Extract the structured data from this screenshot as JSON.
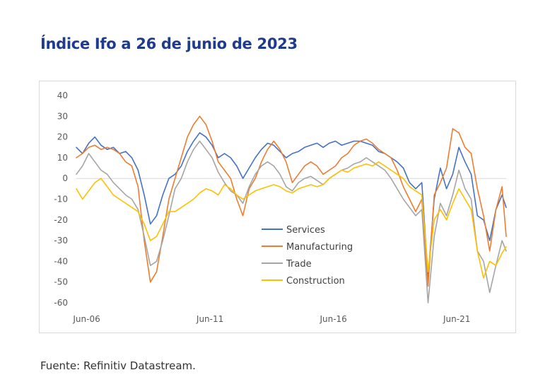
{
  "page": {
    "title": "Índice Ifo a 26 de junio de 2023",
    "source": "Fuente: Refinitiv Datastream."
  },
  "chart_data": {
    "type": "line",
    "title": "Índice Ifo a 26 de junio de 2023",
    "xlabel": "",
    "ylabel": "",
    "ylim": [
      -60,
      40
    ],
    "yticks": [
      40,
      30,
      20,
      10,
      0,
      -10,
      -20,
      -30,
      -40,
      -50,
      -60
    ],
    "xlim": [
      "Jun-06",
      "Jun-23"
    ],
    "xticks": [
      "Jun-06",
      "Jun-11",
      "Jun-16",
      "Jun-21"
    ],
    "zero_line": true,
    "grid": false,
    "legend": "center",
    "series": [
      {
        "name": "Services",
        "color": "#4472c4",
        "points": [
          [
            "2006-01",
            15
          ],
          [
            "2006-04",
            12
          ],
          [
            "2006-07",
            17
          ],
          [
            "2006-10",
            20
          ],
          [
            "2007-01",
            16
          ],
          [
            "2007-04",
            14
          ],
          [
            "2007-07",
            15
          ],
          [
            "2007-10",
            12
          ],
          [
            "2008-01",
            13
          ],
          [
            "2008-04",
            10
          ],
          [
            "2008-07",
            4
          ],
          [
            "2008-10",
            -8
          ],
          [
            "2009-01",
            -22
          ],
          [
            "2009-04",
            -18
          ],
          [
            "2009-07",
            -8
          ],
          [
            "2009-10",
            0
          ],
          [
            "2010-01",
            2
          ],
          [
            "2010-04",
            6
          ],
          [
            "2010-07",
            13
          ],
          [
            "2010-10",
            18
          ],
          [
            "2011-01",
            22
          ],
          [
            "2011-04",
            20
          ],
          [
            "2011-07",
            16
          ],
          [
            "2011-10",
            10
          ],
          [
            "2012-01",
            12
          ],
          [
            "2012-04",
            10
          ],
          [
            "2012-07",
            6
          ],
          [
            "2012-10",
            0
          ],
          [
            "2013-01",
            5
          ],
          [
            "2013-04",
            10
          ],
          [
            "2013-07",
            14
          ],
          [
            "2013-10",
            17
          ],
          [
            "2014-01",
            16
          ],
          [
            "2014-04",
            13
          ],
          [
            "2014-07",
            10
          ],
          [
            "2014-10",
            12
          ],
          [
            "2015-01",
            13
          ],
          [
            "2015-04",
            15
          ],
          [
            "2015-07",
            16
          ],
          [
            "2015-10",
            17
          ],
          [
            "2016-01",
            15
          ],
          [
            "2016-04",
            17
          ],
          [
            "2016-07",
            18
          ],
          [
            "2016-10",
            16
          ],
          [
            "2017-01",
            17
          ],
          [
            "2017-04",
            18
          ],
          [
            "2017-07",
            18
          ],
          [
            "2017-10",
            17
          ],
          [
            "2018-01",
            16
          ],
          [
            "2018-04",
            13
          ],
          [
            "2018-07",
            12
          ],
          [
            "2018-10",
            10
          ],
          [
            "2019-01",
            8
          ],
          [
            "2019-04",
            5
          ],
          [
            "2019-07",
            -2
          ],
          [
            "2019-10",
            -5
          ],
          [
            "2020-01",
            -2
          ],
          [
            "2020-04",
            -48
          ],
          [
            "2020-07",
            -10
          ],
          [
            "2020-10",
            5
          ],
          [
            "2021-01",
            -5
          ],
          [
            "2021-04",
            2
          ],
          [
            "2021-07",
            15
          ],
          [
            "2021-10",
            8
          ],
          [
            "2022-01",
            2
          ],
          [
            "2022-04",
            -18
          ],
          [
            "2022-07",
            -20
          ],
          [
            "2022-10",
            -30
          ],
          [
            "2023-01",
            -15
          ],
          [
            "2023-04",
            -8
          ],
          [
            "2023-06",
            -14
          ]
        ]
      },
      {
        "name": "Manufacturing",
        "color": "#ed7d31",
        "points": [
          [
            "2006-01",
            10
          ],
          [
            "2006-04",
            12
          ],
          [
            "2006-07",
            15
          ],
          [
            "2006-10",
            16
          ],
          [
            "2007-01",
            14
          ],
          [
            "2007-04",
            15
          ],
          [
            "2007-07",
            14
          ],
          [
            "2007-10",
            12
          ],
          [
            "2008-01",
            8
          ],
          [
            "2008-04",
            6
          ],
          [
            "2008-07",
            -4
          ],
          [
            "2008-10",
            -30
          ],
          [
            "2009-01",
            -50
          ],
          [
            "2009-04",
            -45
          ],
          [
            "2009-07",
            -28
          ],
          [
            "2009-10",
            -10
          ],
          [
            "2010-01",
            0
          ],
          [
            "2010-04",
            10
          ],
          [
            "2010-07",
            20
          ],
          [
            "2010-10",
            26
          ],
          [
            "2011-01",
            30
          ],
          [
            "2011-04",
            26
          ],
          [
            "2011-07",
            18
          ],
          [
            "2011-10",
            8
          ],
          [
            "2012-01",
            4
          ],
          [
            "2012-04",
            0
          ],
          [
            "2012-07",
            -10
          ],
          [
            "2012-10",
            -18
          ],
          [
            "2013-01",
            -5
          ],
          [
            "2013-04",
            0
          ],
          [
            "2013-07",
            8
          ],
          [
            "2013-10",
            14
          ],
          [
            "2014-01",
            18
          ],
          [
            "2014-04",
            14
          ],
          [
            "2014-07",
            8
          ],
          [
            "2014-10",
            -2
          ],
          [
            "2015-01",
            2
          ],
          [
            "2015-04",
            6
          ],
          [
            "2015-07",
            8
          ],
          [
            "2015-10",
            6
          ],
          [
            "2016-01",
            2
          ],
          [
            "2016-04",
            4
          ],
          [
            "2016-07",
            6
          ],
          [
            "2016-10",
            10
          ],
          [
            "2017-01",
            12
          ],
          [
            "2017-04",
            16
          ],
          [
            "2017-07",
            18
          ],
          [
            "2017-10",
            19
          ],
          [
            "2018-01",
            17
          ],
          [
            "2018-04",
            14
          ],
          [
            "2018-07",
            12
          ],
          [
            "2018-10",
            10
          ],
          [
            "2019-01",
            4
          ],
          [
            "2019-04",
            -4
          ],
          [
            "2019-07",
            -10
          ],
          [
            "2019-10",
            -16
          ],
          [
            "2020-01",
            -10
          ],
          [
            "2020-04",
            -52
          ],
          [
            "2020-07",
            -8
          ],
          [
            "2020-10",
            -2
          ],
          [
            "2021-01",
            5
          ],
          [
            "2021-04",
            24
          ],
          [
            "2021-07",
            22
          ],
          [
            "2021-10",
            15
          ],
          [
            "2022-01",
            12
          ],
          [
            "2022-04",
            -5
          ],
          [
            "2022-07",
            -18
          ],
          [
            "2022-10",
            -35
          ],
          [
            "2023-01",
            -15
          ],
          [
            "2023-04",
            -4
          ],
          [
            "2023-06",
            -28
          ]
        ]
      },
      {
        "name": "Trade",
        "color": "#a5a5a5",
        "points": [
          [
            "2006-01",
            2
          ],
          [
            "2006-04",
            6
          ],
          [
            "2006-07",
            12
          ],
          [
            "2006-10",
            8
          ],
          [
            "2007-01",
            4
          ],
          [
            "2007-04",
            2
          ],
          [
            "2007-07",
            -2
          ],
          [
            "2007-10",
            -5
          ],
          [
            "2008-01",
            -8
          ],
          [
            "2008-04",
            -10
          ],
          [
            "2008-07",
            -15
          ],
          [
            "2008-10",
            -28
          ],
          [
            "2009-01",
            -42
          ],
          [
            "2009-04",
            -40
          ],
          [
            "2009-07",
            -30
          ],
          [
            "2009-10",
            -18
          ],
          [
            "2010-01",
            -5
          ],
          [
            "2010-04",
            0
          ],
          [
            "2010-07",
            8
          ],
          [
            "2010-10",
            14
          ],
          [
            "2011-01",
            18
          ],
          [
            "2011-04",
            14
          ],
          [
            "2011-07",
            10
          ],
          [
            "2011-10",
            3
          ],
          [
            "2012-01",
            -2
          ],
          [
            "2012-04",
            -6
          ],
          [
            "2012-07",
            -8
          ],
          [
            "2012-10",
            -12
          ],
          [
            "2013-01",
            -4
          ],
          [
            "2013-04",
            2
          ],
          [
            "2013-07",
            6
          ],
          [
            "2013-10",
            8
          ],
          [
            "2014-01",
            6
          ],
          [
            "2014-04",
            2
          ],
          [
            "2014-07",
            -4
          ],
          [
            "2014-10",
            -6
          ],
          [
            "2015-01",
            -2
          ],
          [
            "2015-04",
            0
          ],
          [
            "2015-07",
            1
          ],
          [
            "2015-10",
            -1
          ],
          [
            "2016-01",
            -3
          ],
          [
            "2016-04",
            0
          ],
          [
            "2016-07",
            2
          ],
          [
            "2016-10",
            4
          ],
          [
            "2017-01",
            5
          ],
          [
            "2017-04",
            7
          ],
          [
            "2017-07",
            8
          ],
          [
            "2017-10",
            10
          ],
          [
            "2018-01",
            8
          ],
          [
            "2018-04",
            6
          ],
          [
            "2018-07",
            4
          ],
          [
            "2018-10",
            0
          ],
          [
            "2019-01",
            -5
          ],
          [
            "2019-04",
            -10
          ],
          [
            "2019-07",
            -14
          ],
          [
            "2019-10",
            -18
          ],
          [
            "2020-01",
            -15
          ],
          [
            "2020-04",
            -60
          ],
          [
            "2020-07",
            -28
          ],
          [
            "2020-10",
            -12
          ],
          [
            "2021-01",
            -18
          ],
          [
            "2021-04",
            -8
          ],
          [
            "2021-07",
            4
          ],
          [
            "2021-10",
            -5
          ],
          [
            "2022-01",
            -10
          ],
          [
            "2022-04",
            -35
          ],
          [
            "2022-07",
            -40
          ],
          [
            "2022-10",
            -55
          ],
          [
            "2023-01",
            -42
          ],
          [
            "2023-04",
            -30
          ],
          [
            "2023-06",
            -35
          ]
        ]
      },
      {
        "name": "Construction",
        "color": "#ffc000",
        "points": [
          [
            "2006-01",
            -5
          ],
          [
            "2006-04",
            -10
          ],
          [
            "2006-07",
            -6
          ],
          [
            "2006-10",
            -2
          ],
          [
            "2007-01",
            0
          ],
          [
            "2007-04",
            -4
          ],
          [
            "2007-07",
            -8
          ],
          [
            "2007-10",
            -10
          ],
          [
            "2008-01",
            -12
          ],
          [
            "2008-04",
            -14
          ],
          [
            "2008-07",
            -16
          ],
          [
            "2008-10",
            -22
          ],
          [
            "2009-01",
            -30
          ],
          [
            "2009-04",
            -28
          ],
          [
            "2009-07",
            -22
          ],
          [
            "2009-10",
            -16
          ],
          [
            "2010-01",
            -16
          ],
          [
            "2010-04",
            -14
          ],
          [
            "2010-07",
            -12
          ],
          [
            "2010-10",
            -10
          ],
          [
            "2011-01",
            -7
          ],
          [
            "2011-04",
            -5
          ],
          [
            "2011-07",
            -6
          ],
          [
            "2011-10",
            -8
          ],
          [
            "2012-01",
            -3
          ],
          [
            "2012-04",
            -5
          ],
          [
            "2012-07",
            -8
          ],
          [
            "2012-10",
            -10
          ],
          [
            "2013-01",
            -8
          ],
          [
            "2013-04",
            -6
          ],
          [
            "2013-07",
            -5
          ],
          [
            "2013-10",
            -4
          ],
          [
            "2014-01",
            -3
          ],
          [
            "2014-04",
            -4
          ],
          [
            "2014-07",
            -6
          ],
          [
            "2014-10",
            -7
          ],
          [
            "2015-01",
            -5
          ],
          [
            "2015-04",
            -4
          ],
          [
            "2015-07",
            -3
          ],
          [
            "2015-10",
            -4
          ],
          [
            "2016-01",
            -3
          ],
          [
            "2016-04",
            0
          ],
          [
            "2016-07",
            2
          ],
          [
            "2016-10",
            4
          ],
          [
            "2017-01",
            3
          ],
          [
            "2017-04",
            5
          ],
          [
            "2017-07",
            6
          ],
          [
            "2017-10",
            7
          ],
          [
            "2018-01",
            6
          ],
          [
            "2018-04",
            8
          ],
          [
            "2018-07",
            6
          ],
          [
            "2018-10",
            4
          ],
          [
            "2019-01",
            2
          ],
          [
            "2019-04",
            0
          ],
          [
            "2019-07",
            -4
          ],
          [
            "2019-10",
            -6
          ],
          [
            "2020-01",
            -8
          ],
          [
            "2020-04",
            -45
          ],
          [
            "2020-07",
            -20
          ],
          [
            "2020-10",
            -15
          ],
          [
            "2021-01",
            -20
          ],
          [
            "2021-04",
            -12
          ],
          [
            "2021-07",
            -5
          ],
          [
            "2021-10",
            -10
          ],
          [
            "2022-01",
            -15
          ],
          [
            "2022-04",
            -35
          ],
          [
            "2022-07",
            -48
          ],
          [
            "2022-10",
            -40
          ],
          [
            "2023-01",
            -42
          ],
          [
            "2023-04",
            -36
          ],
          [
            "2023-06",
            -33
          ]
        ]
      }
    ]
  }
}
